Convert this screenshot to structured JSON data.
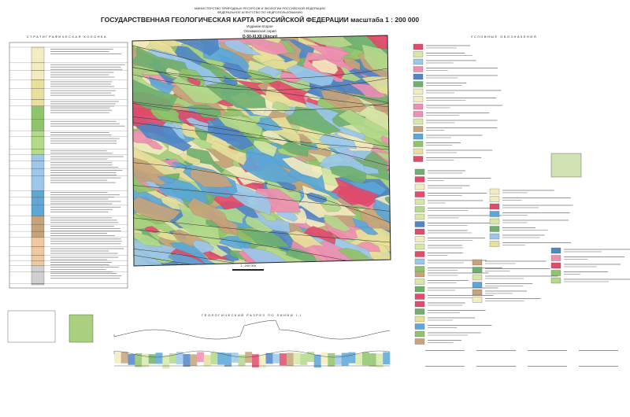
{
  "header": {
    "ministry": "МИНИСТЕРСТВО ПРИРОДНЫХ РЕСУРСОВ И ЭКОЛОГИИ РОССИЙСКОЙ ФЕДЕРАЦИИ",
    "agency": "ФЕДЕРАЛЬНОЕ АГЕНТСТВО ПО НЕДРОПОЛЬЗОВАНИЮ",
    "title": "ГОСУДАРСТВЕННАЯ ГЕОЛОГИЧЕСКАЯ КАРТА РОССИЙСКОЙ ФЕДЕРАЦИИ масштаба 1 : 200 000",
    "edition": "Издание второе",
    "series": "Олекминская серия",
    "sheet": "Q-50-XI,XII (Апсат)"
  },
  "sections": {
    "stratigraphy": "СТРАТИГРАФИЧЕСКАЯ КОЛОНКА",
    "legend": "УСЛОВНЫЕ ОБОЗНАЧЕНИЯ",
    "cross_section": "ГЕОЛОГИЧЕСКИЙ РАЗРЕЗ ПО ЛИНИИ I-I"
  },
  "map": {
    "scale": "1 : 200 000"
  }
}
